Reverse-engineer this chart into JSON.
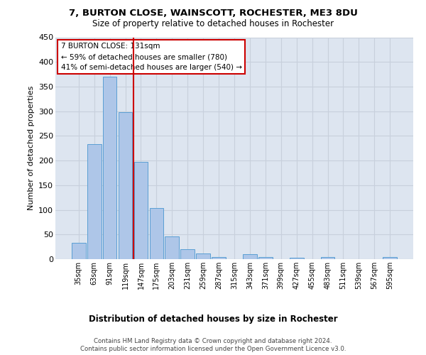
{
  "title1": "7, BURTON CLOSE, WAINSCOTT, ROCHESTER, ME3 8DU",
  "title2": "Size of property relative to detached houses in Rochester",
  "xlabel": "Distribution of detached houses by size in Rochester",
  "ylabel": "Number of detached properties",
  "categories": [
    "35sqm",
    "63sqm",
    "91sqm",
    "119sqm",
    "147sqm",
    "175sqm",
    "203sqm",
    "231sqm",
    "259sqm",
    "287sqm",
    "315sqm",
    "343sqm",
    "371sqm",
    "399sqm",
    "427sqm",
    "455sqm",
    "483sqm",
    "511sqm",
    "539sqm",
    "567sqm",
    "595sqm"
  ],
  "values": [
    33,
    234,
    370,
    298,
    198,
    104,
    46,
    20,
    12,
    5,
    0,
    10,
    5,
    0,
    3,
    0,
    5,
    0,
    0,
    0,
    4
  ],
  "bar_color": "#aec6e8",
  "bar_edge_color": "#5a9fd4",
  "grid_color": "#c8d0dc",
  "bg_color": "#dde5f0",
  "vline_color": "#cc0000",
  "vline_x": 3.5,
  "annotation_text": "7 BURTON CLOSE: 131sqm\n← 59% of detached houses are smaller (780)\n41% of semi-detached houses are larger (540) →",
  "annotation_box_color": "#ffffff",
  "annotation_box_edge": "#cc0000",
  "footer1": "Contains HM Land Registry data © Crown copyright and database right 2024.",
  "footer2": "Contains public sector information licensed under the Open Government Licence v3.0.",
  "ylim": [
    0,
    450
  ],
  "yticks": [
    0,
    50,
    100,
    150,
    200,
    250,
    300,
    350,
    400,
    450
  ]
}
